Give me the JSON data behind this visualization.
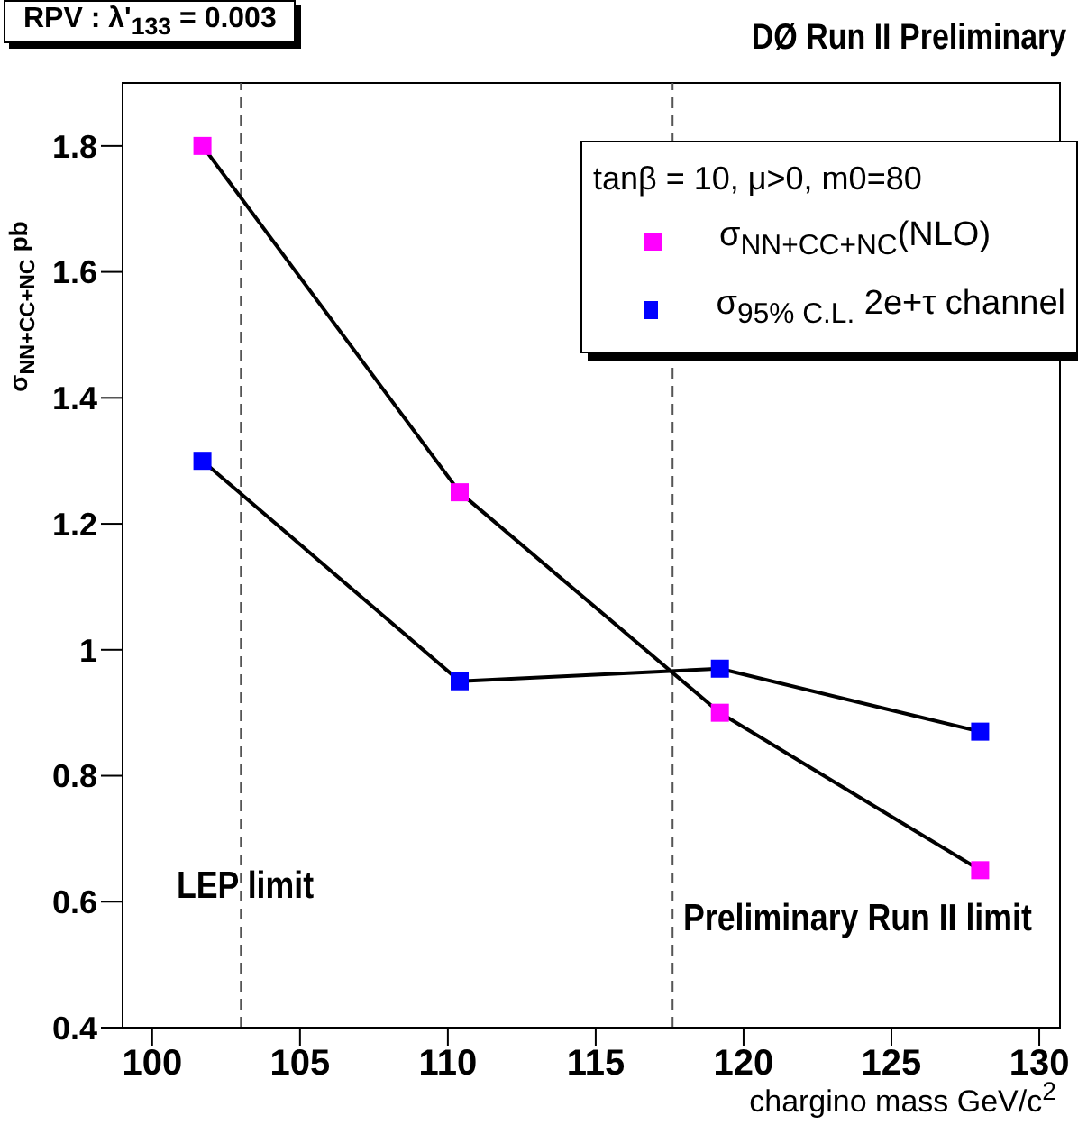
{
  "chart_data": {
    "type": "line",
    "title": "DØ Run II Preliminary",
    "annotations": [
      "RPV : λ'$_{133}$ = 0.003"
    ],
    "xlabel": "chargino mass GeV/c$^{2}$",
    "ylabel": "σ$_{NN+CC+NC}$ pb",
    "legend_title": "tanβ = 10, μ>0, m0=80",
    "x": [
      101.7,
      110.4,
      119.2,
      128
    ],
    "series": [
      {
        "name": "σ$_{NN+CC+NC}$(NLO)",
        "color": "#ff00ff",
        "values": [
          1.8,
          1.25,
          0.9,
          0.65
        ]
      },
      {
        "name": "σ$_{95% C.L.}$ 2e+τ channel",
        "color": "#0000ff",
        "values": [
          1.3,
          0.95,
          0.97,
          0.87
        ]
      }
    ],
    "xlim": [
      99,
      130.7
    ],
    "xticks": [
      100,
      105,
      110,
      115,
      120,
      125,
      130
    ],
    "ylim": [
      0.4,
      1.9
    ],
    "yticks": [
      0.4,
      0.6,
      0.8,
      1,
      1.2,
      1.4,
      1.6,
      1.8
    ],
    "ref_lines": [
      {
        "axis": "x",
        "value": 103,
        "label": "LEP limit",
        "line_style": "dashed"
      },
      {
        "axis": "x",
        "value": 117.6,
        "label": "Preliminary Run II limit",
        "line_style": "dashed"
      }
    ],
    "marker": "square",
    "line_style": "solid",
    "grid": false,
    "legend": "top right"
  }
}
